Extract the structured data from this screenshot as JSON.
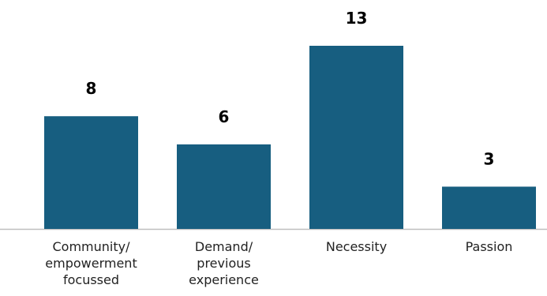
{
  "chart_data": {
    "type": "bar",
    "categories": [
      [
        "Community/",
        "empowerment",
        "focussed"
      ],
      [
        "Demand/",
        "previous",
        "experience"
      ],
      [
        "Necessity"
      ],
      [
        "Passion"
      ]
    ],
    "values": [
      8,
      6,
      13,
      3
    ],
    "data_labels": [
      "8",
      "6",
      "13",
      "3"
    ],
    "title": "",
    "xlabel": "",
    "ylabel": "",
    "ylim": [
      0,
      13
    ],
    "grid": false,
    "legend": "none"
  },
  "colors": {
    "bar": "#175e80",
    "axis": "#bfbfbf",
    "label": "#000000"
  }
}
